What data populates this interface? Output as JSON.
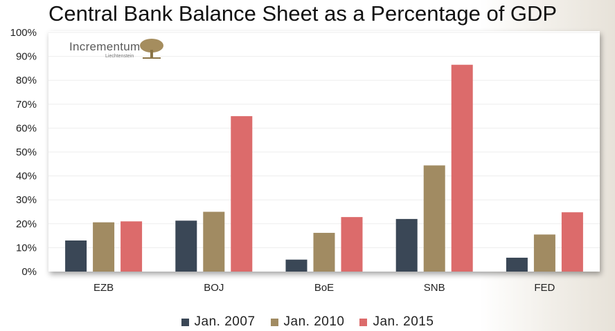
{
  "title": "Central Bank Balance Sheet as a Percentage of GDP",
  "logo": {
    "name": "Incrementum",
    "sub": "Liechtenstein",
    "icon": "tree-icon"
  },
  "colors": {
    "s2007": "#3a4756",
    "s2010": "#a18b62",
    "s2015": "#dc6b6b"
  },
  "chart_data": {
    "type": "bar",
    "title": "Central Bank Balance Sheet as a Percentage of GDP",
    "categories": [
      "EZB",
      "BOJ",
      "BoE",
      "SNB",
      "FED"
    ],
    "series": [
      {
        "name": "Jan. 2007",
        "values": [
          13,
          21.3,
          5,
          22,
          5.8
        ]
      },
      {
        "name": "Jan. 2010",
        "values": [
          20.6,
          25,
          16.2,
          44.4,
          15.5
        ]
      },
      {
        "name": "Jan. 2015",
        "values": [
          21,
          65,
          22.8,
          86.5,
          24.8
        ]
      }
    ],
    "ylim": [
      0,
      100
    ],
    "yticks": [
      "0%",
      "10%",
      "20%",
      "30%",
      "40%",
      "50%",
      "60%",
      "70%",
      "80%",
      "90%",
      "100%"
    ],
    "legend_position": "bottom",
    "grid": true
  }
}
